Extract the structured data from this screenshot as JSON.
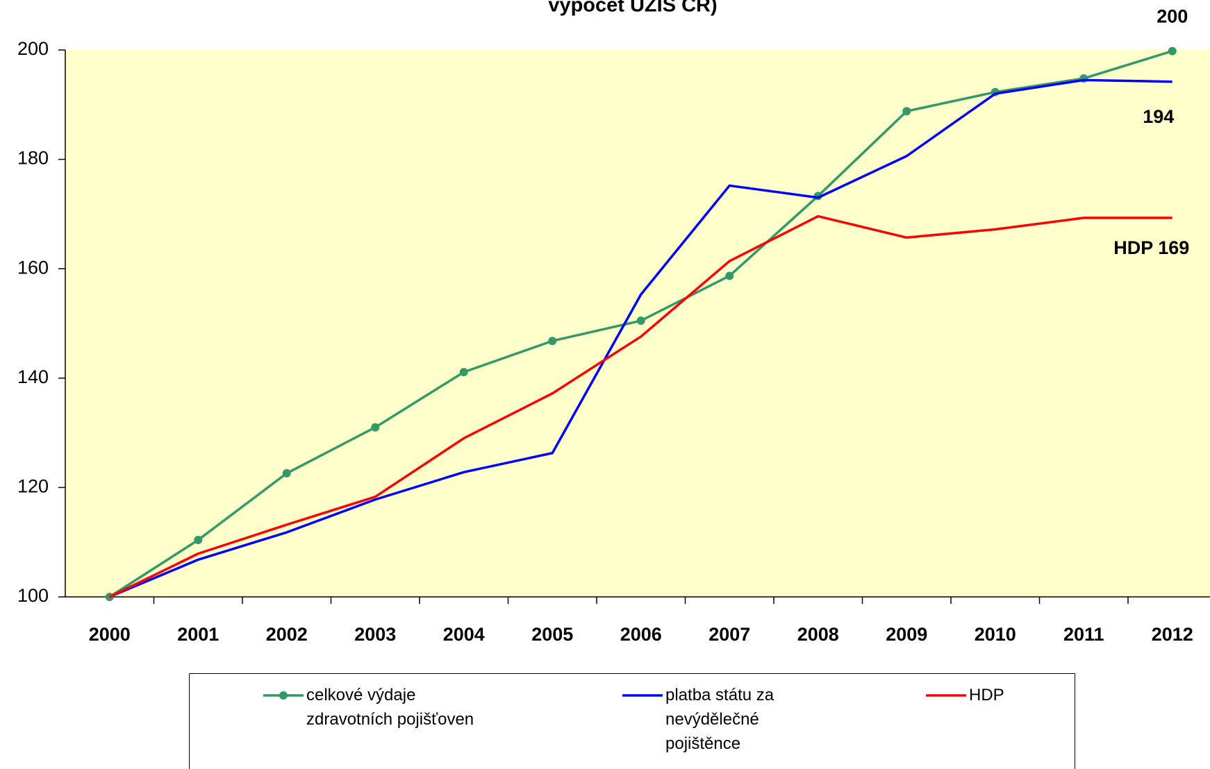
{
  "chart_data": {
    "type": "line",
    "title": "výpočet ÚZIS ČR)",
    "categories": [
      "2000",
      "2001",
      "2002",
      "2003",
      "2004",
      "2005",
      "2006",
      "2007",
      "2008",
      "2009",
      "2010",
      "2011",
      "2012"
    ],
    "series": [
      {
        "name": "celkové výdaje zdravotních pojišťoven",
        "color": "#339966",
        "markers": true,
        "values": [
          100,
          110.4,
          122.6,
          131,
          141.1,
          146.8,
          150.5,
          158.7,
          173.3,
          188.8,
          192.3,
          194.8,
          199.8
        ],
        "value_labels": [
          null,
          null,
          null,
          null,
          null,
          null,
          null,
          null,
          null,
          null,
          null,
          null,
          "200"
        ]
      },
      {
        "name": "platba státu za nevýdělečné pojištěnce",
        "color": "#0000ff",
        "markers": false,
        "values": [
          100,
          106.8,
          111.8,
          117.8,
          122.8,
          126.3,
          155.3,
          175.2,
          173,
          180.6,
          192,
          194.5,
          194.2
        ],
        "value_labels": [
          null,
          null,
          null,
          null,
          null,
          null,
          null,
          null,
          null,
          null,
          null,
          null,
          "194"
        ]
      },
      {
        "name": "HDP",
        "color": "#ff0000",
        "markers": false,
        "values": [
          100,
          107.9,
          113.2,
          118.3,
          129,
          137.2,
          147.6,
          161.4,
          169.6,
          165.7,
          167.2,
          169.3,
          169.3
        ],
        "value_labels": [
          null,
          null,
          null,
          null,
          null,
          null,
          null,
          null,
          null,
          null,
          null,
          null,
          "HDP 169"
        ]
      }
    ],
    "ylim": [
      100,
      200
    ],
    "yticks": [
      100,
      120,
      140,
      160,
      180,
      200
    ],
    "grid": false,
    "plot_background": "#ffffcc",
    "legend": "bottom"
  }
}
